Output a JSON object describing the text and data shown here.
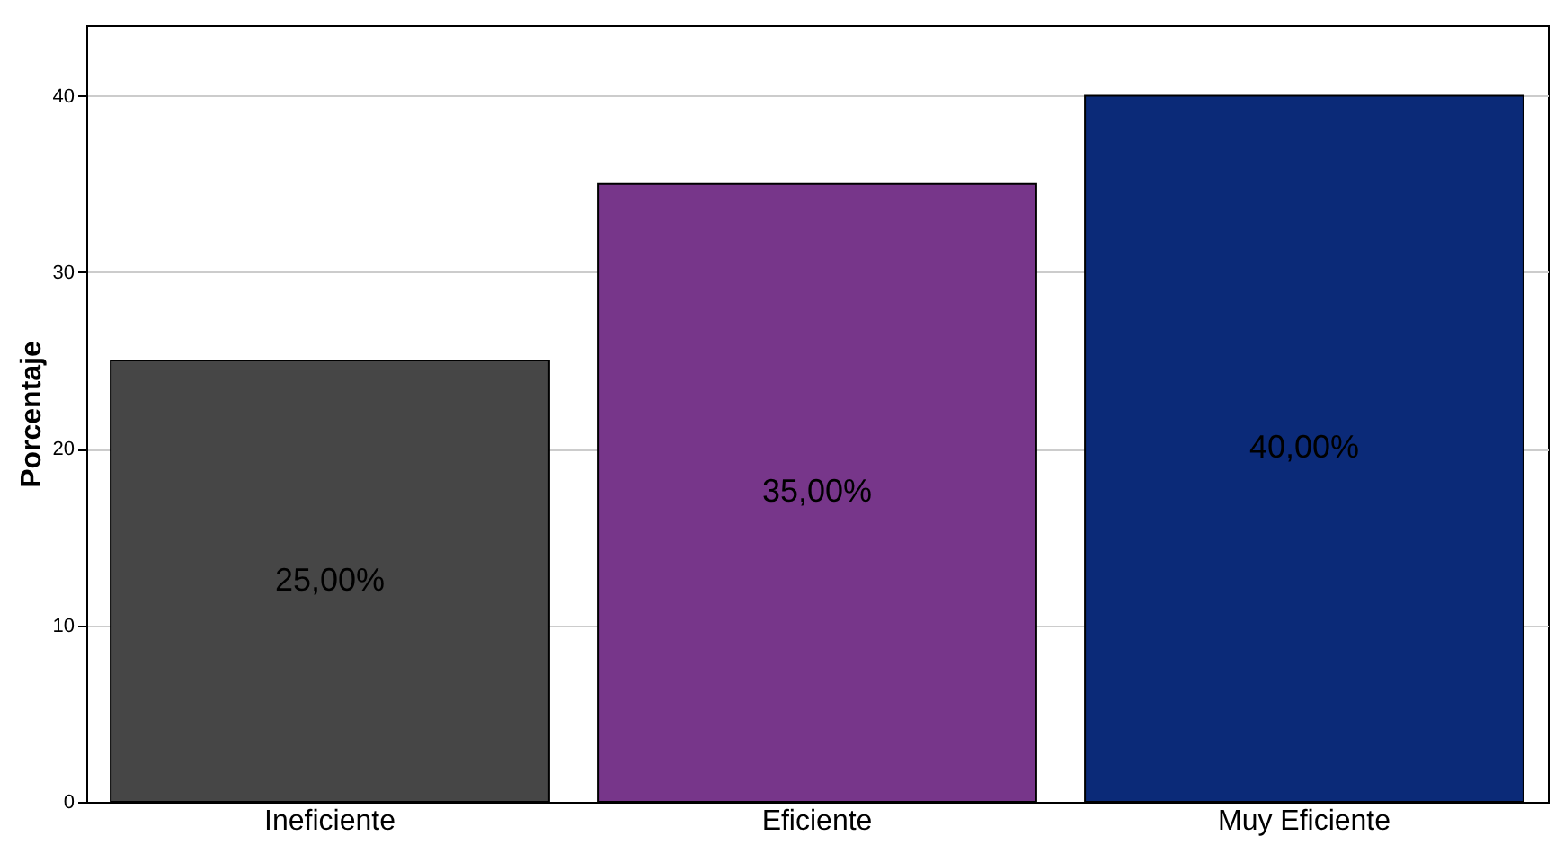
{
  "chart_data": {
    "type": "bar",
    "ylabel": "Porcentaje",
    "categories": [
      "Ineficiente",
      "Eficiente",
      "Muy Eficiente"
    ],
    "values": [
      25,
      35,
      40
    ],
    "colors": [
      "#464646",
      "#77368a",
      "#0b2a78"
    ],
    "value_labels": [
      "25,00%",
      "35,00%",
      "40,00%"
    ],
    "ylim": [
      0,
      44
    ],
    "yticks": [
      0,
      10,
      20,
      30,
      40
    ],
    "grid": "y"
  }
}
